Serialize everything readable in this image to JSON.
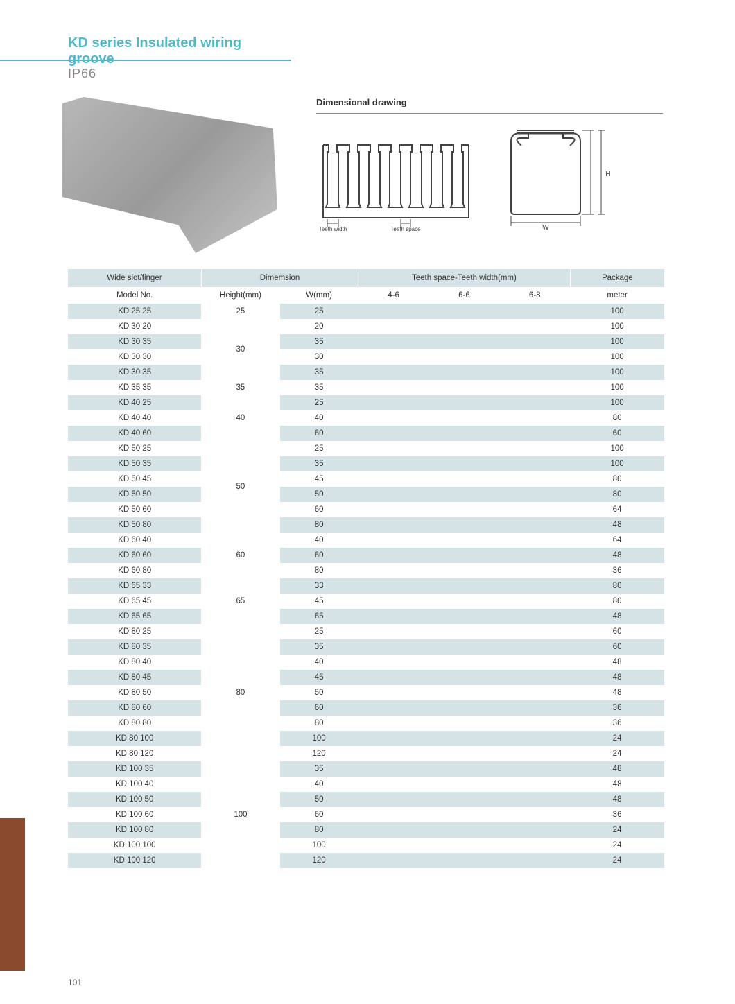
{
  "page_number": "101",
  "colors": {
    "accent": "#4fb9c9",
    "header_bg": "#d6e3e6",
    "row_even": "#d6e3e6",
    "row_odd": "#ffffff",
    "brown_tab": "#8a4a2e",
    "text": "#333333",
    "subtitle": "#888888"
  },
  "header": {
    "title_prefix": "KD",
    "title_rest": " series Insulated wiring groove",
    "subtitle": "IP66"
  },
  "dim_drawing": {
    "title": "Dimensional drawing",
    "label_teeth_width": "Teeth width",
    "label_teeth_space": "Teeth space",
    "label_w": "W",
    "label_h": "H"
  },
  "table": {
    "headers_row1": [
      "Wide slot/finger",
      "Dimemsion",
      "Teeth space-Teeth width(mm)",
      "Package"
    ],
    "headers_row2": [
      "Model No.",
      "Height(mm)",
      "W(mm)",
      "4-6",
      "6-6",
      "6-8",
      "meter"
    ],
    "height_groups": [
      {
        "height": "25",
        "rows": [
          {
            "model": "KD 25 25",
            "w": "25",
            "pkg": "100",
            "even": true
          }
        ]
      },
      {
        "height": "30",
        "rows": [
          {
            "model": "KD 30 20",
            "w": "20",
            "pkg": "100",
            "even": false
          },
          {
            "model": "KD 30 35",
            "w": "35",
            "pkg": "100",
            "even": true
          },
          {
            "model": "KD 30 30",
            "w": "30",
            "pkg": "100",
            "even": false
          },
          {
            "model": "KD 30 35",
            "w": "35",
            "pkg": "100",
            "even": true
          }
        ]
      },
      {
        "height": "35",
        "rows": [
          {
            "model": "KD 35 35",
            "w": "35",
            "pkg": "100",
            "even": false
          }
        ]
      },
      {
        "height": "40",
        "rows": [
          {
            "model": "KD 40 25",
            "w": "25",
            "pkg": "100",
            "even": true
          },
          {
            "model": "KD 40 40",
            "w": "40",
            "pkg": "80",
            "even": false
          },
          {
            "model": "KD 40 60",
            "w": "60",
            "pkg": "60",
            "even": true
          }
        ]
      },
      {
        "height": "50",
        "rows": [
          {
            "model": "KD 50 25",
            "w": "25",
            "pkg": "100",
            "even": false
          },
          {
            "model": "KD 50 35",
            "w": "35",
            "pkg": "100",
            "even": true
          },
          {
            "model": "KD 50 45",
            "w": "45",
            "pkg": "80",
            "even": false
          },
          {
            "model": "KD 50 50",
            "w": "50",
            "pkg": "80",
            "even": true
          },
          {
            "model": "KD 50 60",
            "w": "60",
            "pkg": "64",
            "even": false
          },
          {
            "model": "KD 50 80",
            "w": "80",
            "pkg": "48",
            "even": true
          }
        ]
      },
      {
        "height": "60",
        "rows": [
          {
            "model": "KD 60 40",
            "w": "40",
            "pkg": "64",
            "even": false
          },
          {
            "model": "KD 60 60",
            "w": "60",
            "pkg": "48",
            "even": true
          },
          {
            "model": "KD 60 80",
            "w": "80",
            "pkg": "36",
            "even": false
          }
        ]
      },
      {
        "height": "65",
        "rows": [
          {
            "model": "KD 65 33",
            "w": "33",
            "pkg": "80",
            "even": true
          },
          {
            "model": "KD 65 45",
            "w": "45",
            "pkg": "80",
            "even": false
          },
          {
            "model": "KD 65 65",
            "w": "65",
            "pkg": "48",
            "even": true
          }
        ]
      },
      {
        "height": "80",
        "rows": [
          {
            "model": "KD 80 25",
            "w": "25",
            "pkg": "60",
            "even": false
          },
          {
            "model": "KD 80 35",
            "w": "35",
            "pkg": "60",
            "even": true
          },
          {
            "model": "KD 80 40",
            "w": "40",
            "pkg": "48",
            "even": false
          },
          {
            "model": "KD 80 45",
            "w": "45",
            "pkg": "48",
            "even": true
          },
          {
            "model": "KD 80 50",
            "w": "50",
            "pkg": "48",
            "even": false
          },
          {
            "model": "KD 80 60",
            "w": "60",
            "pkg": "36",
            "even": true
          },
          {
            "model": "KD 80 80",
            "w": "80",
            "pkg": "36",
            "even": false
          },
          {
            "model": "KD 80 100",
            "w": "100",
            "pkg": "24",
            "even": true
          },
          {
            "model": "KD 80 120",
            "w": "120",
            "pkg": "24",
            "even": false
          }
        ]
      },
      {
        "height": "100",
        "rows": [
          {
            "model": "KD 100 35",
            "w": "35",
            "pkg": "48",
            "even": true
          },
          {
            "model": "KD 100 40",
            "w": "40",
            "pkg": "48",
            "even": false
          },
          {
            "model": "KD 100 50",
            "w": "50",
            "pkg": "48",
            "even": true
          },
          {
            "model": "KD 100 60",
            "w": "60",
            "pkg": "36",
            "even": false
          },
          {
            "model": "KD 100 80",
            "w": "80",
            "pkg": "24",
            "even": true
          },
          {
            "model": "KD 100 100",
            "w": "100",
            "pkg": "24",
            "even": false
          },
          {
            "model": "KD 100 120",
            "w": "120",
            "pkg": "24",
            "even": true
          }
        ]
      }
    ]
  }
}
